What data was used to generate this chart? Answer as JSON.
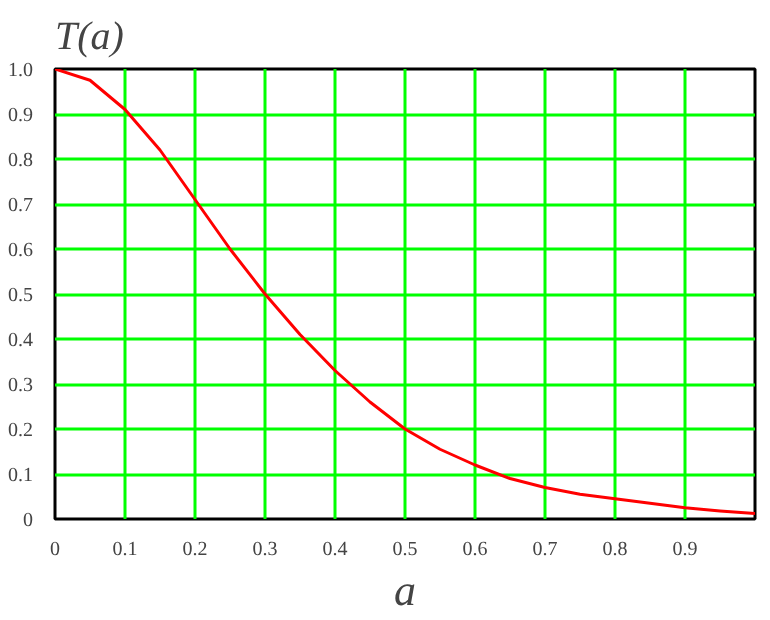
{
  "chart_data": {
    "type": "line",
    "title": "T(a)",
    "xlabel": "a",
    "x": [
      0,
      0.05,
      0.1,
      0.15,
      0.2,
      0.25,
      0.3,
      0.35,
      0.4,
      0.45,
      0.5,
      0.55,
      0.6,
      0.65,
      0.7,
      0.75,
      0.8,
      0.85,
      0.9,
      0.95,
      1.0
    ],
    "series": [
      {
        "color": "#ff0000",
        "values": [
          1,
          0.975,
          0.91,
          0.82,
          0.71,
          0.6,
          0.5,
          0.41,
          0.33,
          0.26,
          0.2,
          0.155,
          0.12,
          0.09,
          0.07,
          0.055,
          0.045,
          0.035,
          0.025,
          0.018,
          0.012
        ]
      }
    ],
    "xlim": [
      0,
      1.0
    ],
    "ylim": [
      0,
      1.0
    ],
    "xticks": [
      0,
      0.1,
      0.2,
      0.3,
      0.4,
      0.5,
      0.6,
      0.7,
      0.8,
      0.9
    ],
    "yticks": [
      0,
      0.1,
      0.2,
      0.3,
      0.4,
      0.5,
      0.6,
      0.7,
      0.8,
      0.9,
      {
        "value": 1.0,
        "label": "1.0"
      }
    ],
    "grid": true,
    "marker": "none",
    "line_style": "solid"
  }
}
